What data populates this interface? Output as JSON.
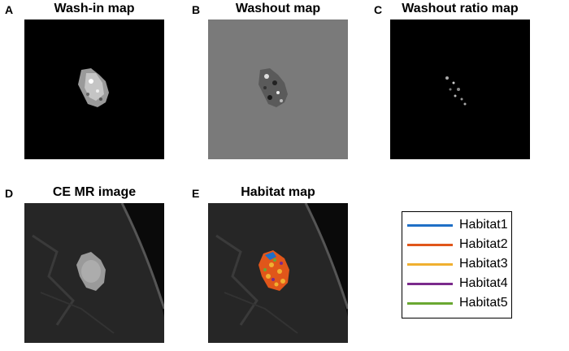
{
  "panels": [
    {
      "letter": "A",
      "title": "Wash-in map"
    },
    {
      "letter": "B",
      "title": "Washout map"
    },
    {
      "letter": "C",
      "title": "Washout ratio map"
    },
    {
      "letter": "D",
      "title": "CE MR image"
    },
    {
      "letter": "E",
      "title": "Habitat map"
    }
  ],
  "legend": {
    "items": [
      {
        "label": "Habitat1",
        "color": "#1f6fc6"
      },
      {
        "label": "Habitat2",
        "color": "#e0561a"
      },
      {
        "label": "Habitat3",
        "color": "#f0b030"
      },
      {
        "label": "Habitat4",
        "color": "#7b2a8c"
      },
      {
        "label": "Habitat5",
        "color": "#6aa832"
      }
    ]
  },
  "colors": {
    "washout_background": "#7a7a7a",
    "image_background": "#000000"
  }
}
